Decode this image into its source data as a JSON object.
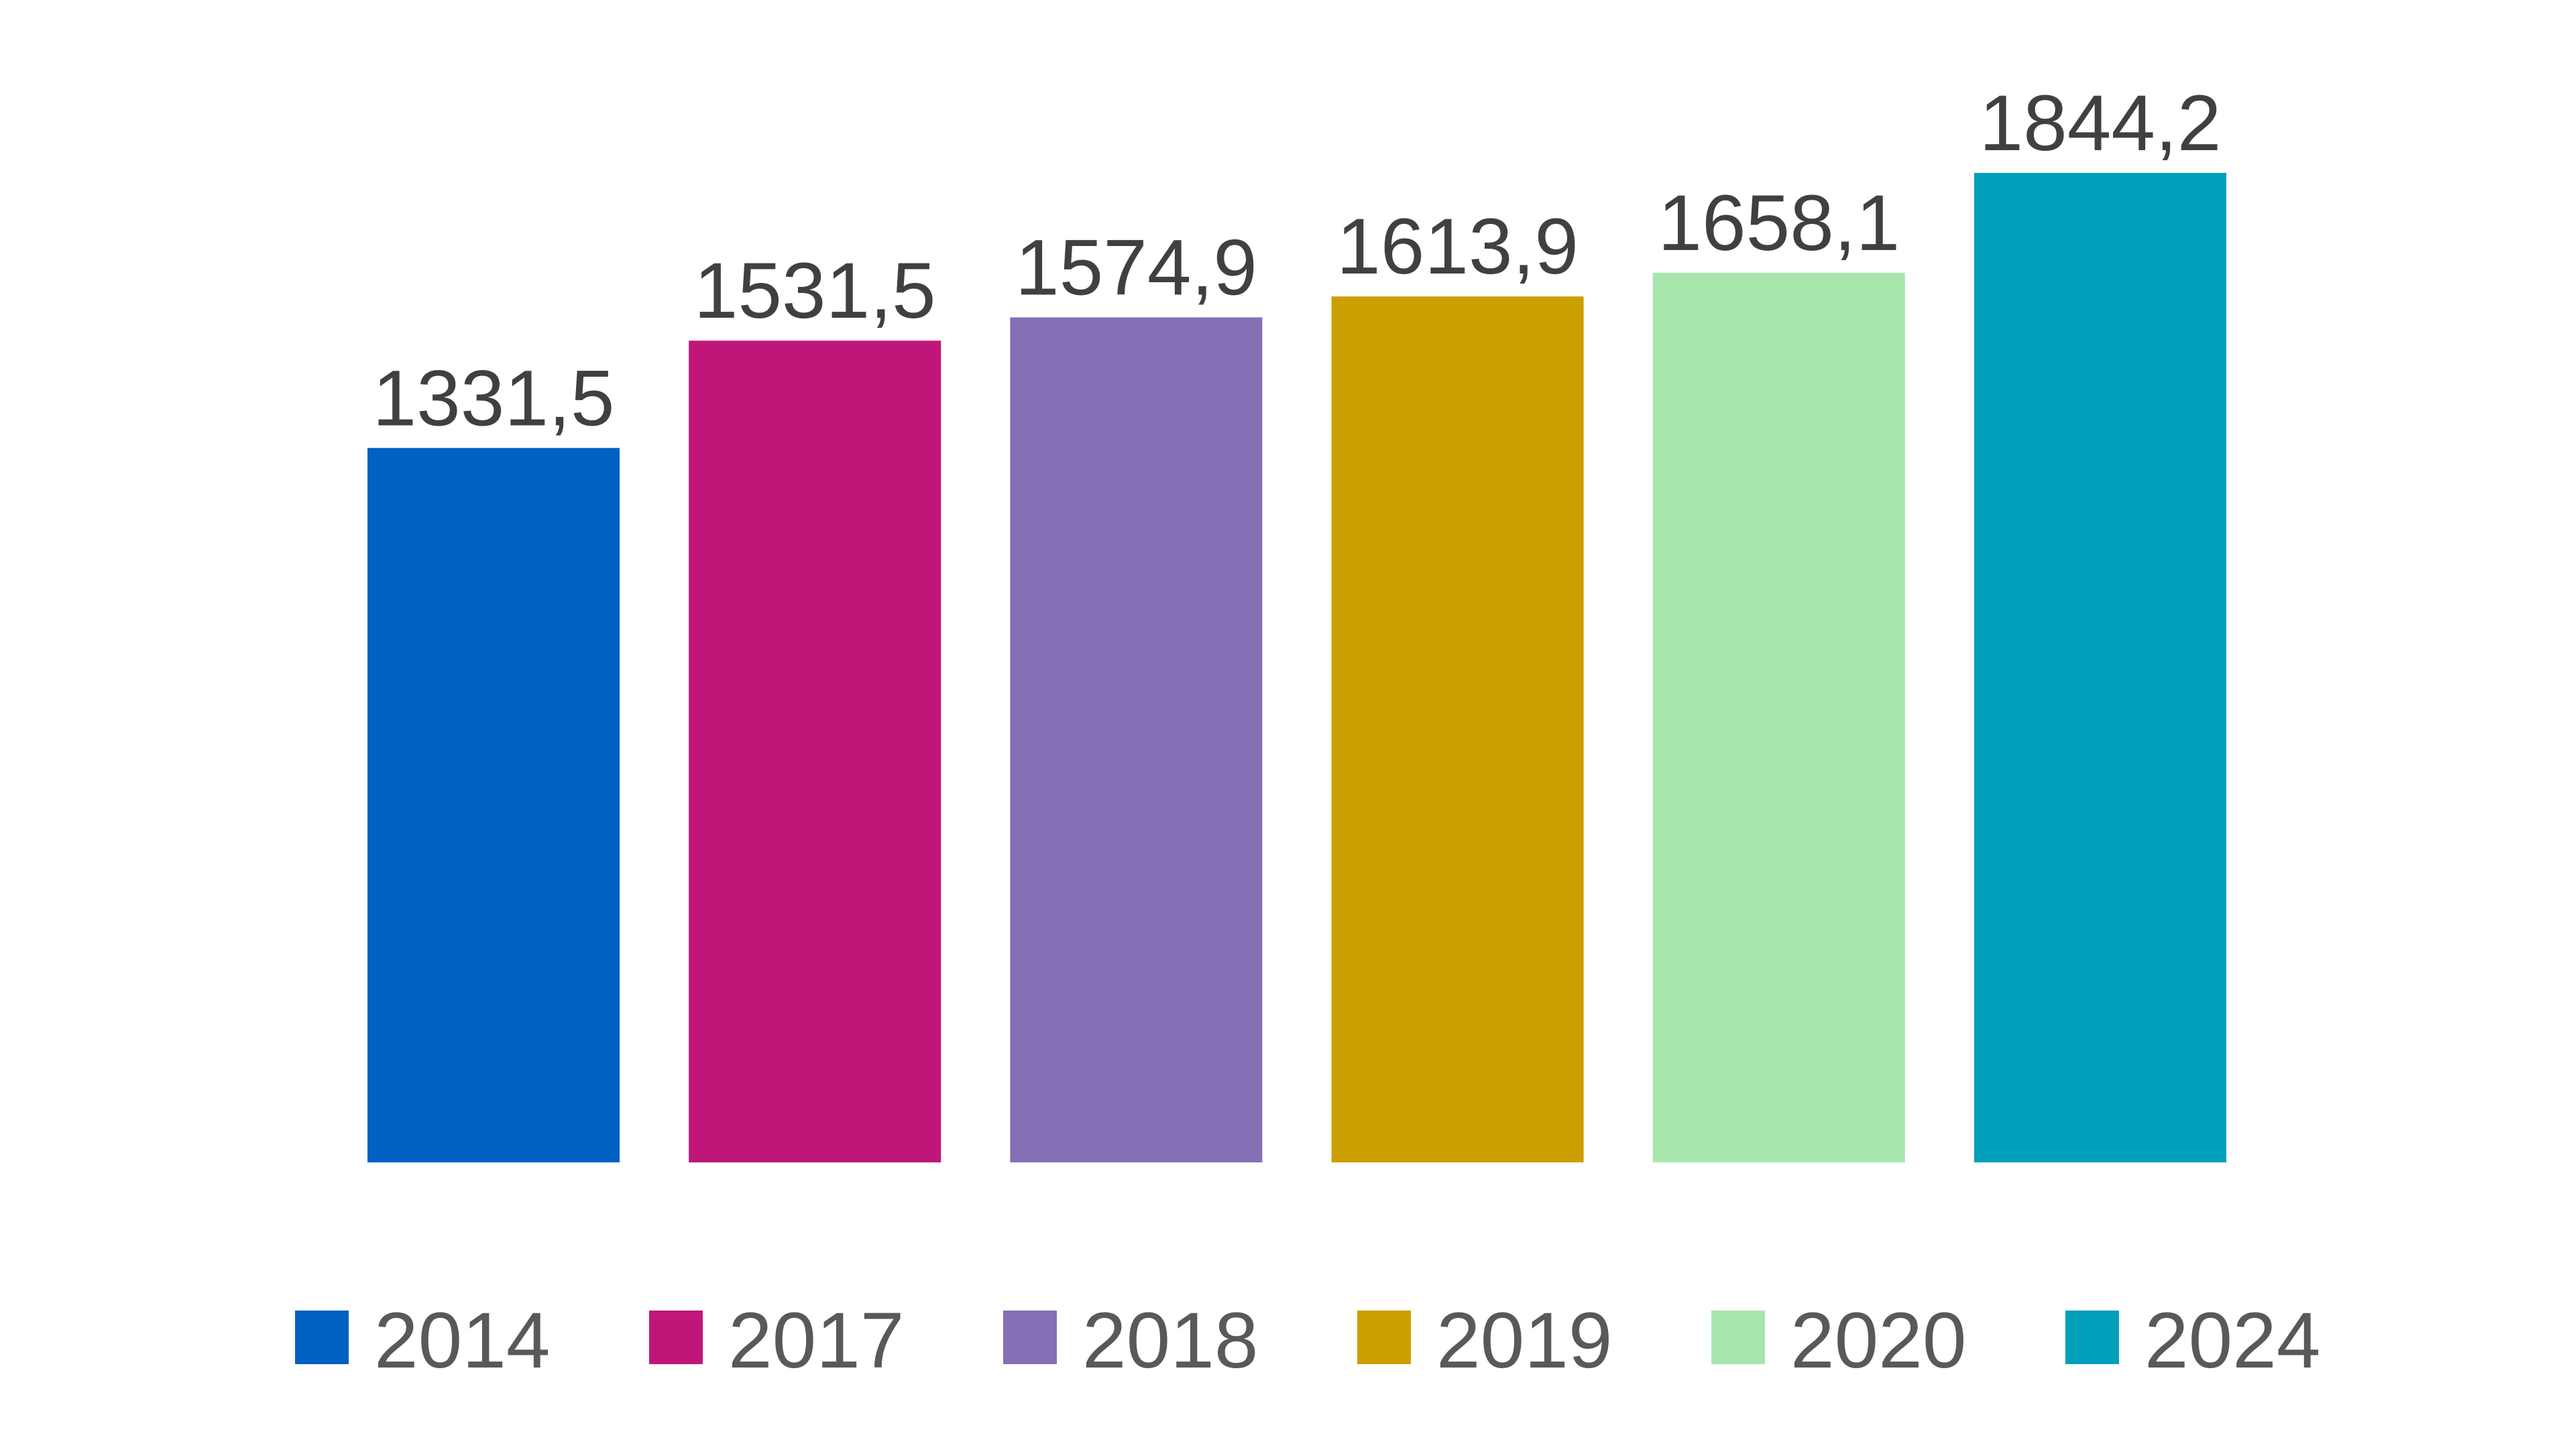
{
  "chart_data": {
    "type": "bar",
    "categories": [
      "2014",
      "2017",
      "2018",
      "2019",
      "2020",
      "2024"
    ],
    "values": [
      1331.5,
      1531.5,
      1574.9,
      1613.9,
      1658.1,
      1844.2
    ],
    "value_labels": [
      "1331,5",
      "1531,5",
      "1574,9",
      "1613,9",
      "1658,1",
      "1844,2"
    ],
    "colors": [
      "#0060C4",
      "#C0167A",
      "#8470B5",
      "#CC9F00",
      "#A8E6AE",
      "#009FBA"
    ],
    "title": "",
    "xlabel": "",
    "ylabel": "",
    "ylim": [
      0,
      1900
    ],
    "grid": false,
    "axes_visible": false,
    "legend": {
      "placement": "bottom",
      "entries": [
        "2014",
        "2017",
        "2018",
        "2019",
        "2020",
        "2024"
      ]
    }
  }
}
